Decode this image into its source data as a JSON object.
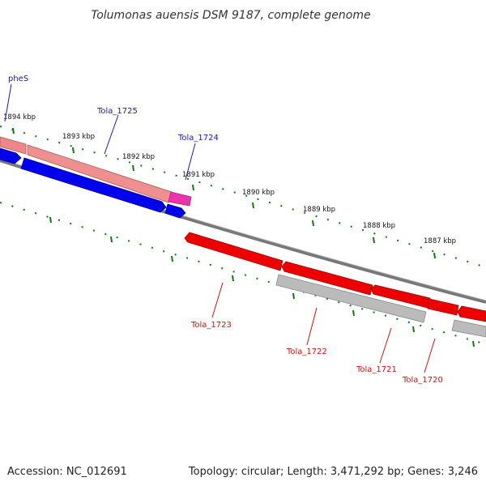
{
  "title": "Tolumonas auensis DSM 9187, complete genome",
  "footer": {
    "accession": "Accession: NC_012691",
    "summary": "Topology: circular; Length: 3,471,292 bp; Genes: 3,246"
  },
  "kbp_labels": [
    "1894 kbp",
    "1893 kbp",
    "1892 kbp",
    "1891 kbp",
    "1890 kbp",
    "1889 kbp",
    "1888 kbp",
    "1887 kbp"
  ],
  "gene_labels": {
    "phes": "pheS",
    "tola_1725": "Tola_1725",
    "tola_1724": "Tola_1724",
    "tola_1723": "Tola_1723",
    "tola_1722": "Tola_1722",
    "tola_1721": "Tola_1721",
    "tola_1720": "Tola_1720"
  },
  "colors": {
    "forward_cds": "#0000ee",
    "forward_gene": "#ee8888",
    "reverse_cds": "#ee0000",
    "reverse_gene": "#bbbbbb",
    "misc_feature": "#ee33aa",
    "backbone": "#777777",
    "ticks": "#117711"
  }
}
